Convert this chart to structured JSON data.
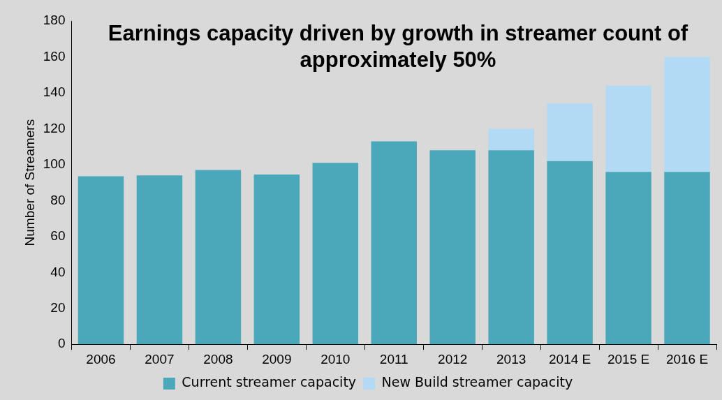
{
  "chart_data": {
    "type": "bar",
    "title": "Earnings capacity driven by growth in streamer count of approximately 50%",
    "ylabel": "Number of Streamers",
    "categories": [
      "2006",
      "2007",
      "2008",
      "2009",
      "2010",
      "2011",
      "2012",
      "2013",
      "2014 E",
      "2015 E",
      "2016 E"
    ],
    "stacked": true,
    "series": [
      {
        "name": "Current streamer capacity",
        "color": "#4ba8bb",
        "values": [
          93.5,
          94,
          97,
          94.5,
          101,
          113,
          108,
          108,
          102,
          96,
          96
        ]
      },
      {
        "name": "New Build streamer capacity",
        "color": "#b3daf4",
        "values": [
          0,
          0,
          0,
          0,
          0,
          0,
          0,
          12,
          32,
          48,
          64
        ]
      }
    ],
    "ylim": [
      0,
      180
    ],
    "yticks": [
      0,
      20,
      40,
      60,
      80,
      100,
      120,
      140,
      160,
      180
    ],
    "grid": false,
    "legend": "bottom"
  }
}
